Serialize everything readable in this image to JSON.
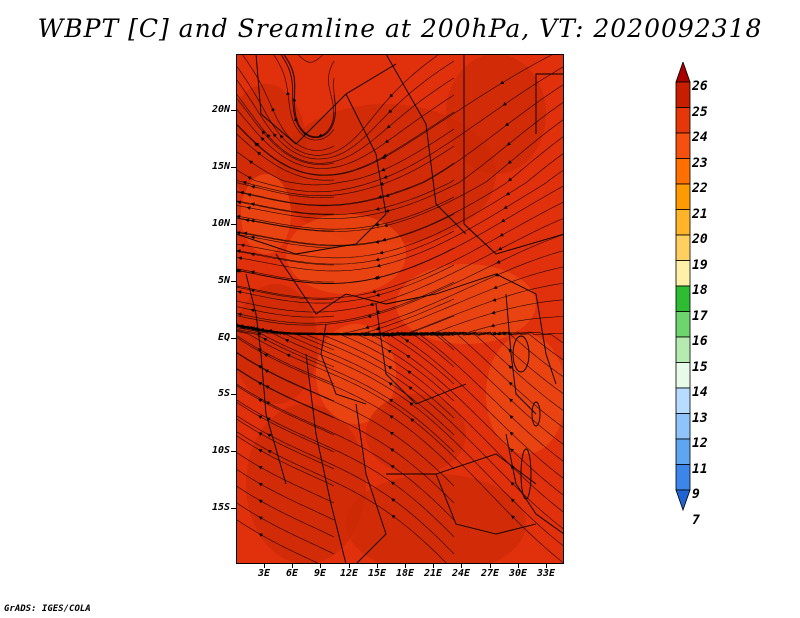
{
  "title": "WBPT [C] and Sreamline at 200hPa, VT: 2020092318",
  "credit": "GrADS: IGES/COLA",
  "lat_labels": [
    "20N",
    "15N",
    "10N",
    "5N",
    "EQ",
    "5S",
    "10S",
    "15S"
  ],
  "lon_labels": [
    "3E",
    "6E",
    "9E",
    "12E",
    "15E",
    "18E",
    "21E",
    "24E",
    "27E",
    "30E",
    "33E"
  ],
  "colorbar": {
    "labels": [
      "26",
      "25",
      "24",
      "23",
      "22",
      "21",
      "20",
      "19",
      "18",
      "17",
      "16",
      "15",
      "14",
      "13",
      "12",
      "11",
      "9",
      "7"
    ],
    "colors": [
      "#a80000",
      "#c81e00",
      "#e6370b",
      "#f5500f",
      "#ff7000",
      "#ff9a00",
      "#ffb42a",
      "#ffd060",
      "#fff0a8",
      "#2ebc32",
      "#6ed46e",
      "#b5eab0",
      "#e8fae8",
      "#b8dcff",
      "#8ec4fa",
      "#5ea6f2",
      "#3c86ea",
      "#1e64d2"
    ]
  },
  "map_colors": {
    "base": "#e0300c",
    "warm": "#cc2a06",
    "light": "#ee4a14",
    "border": "#000000",
    "stream": "#000000"
  }
}
